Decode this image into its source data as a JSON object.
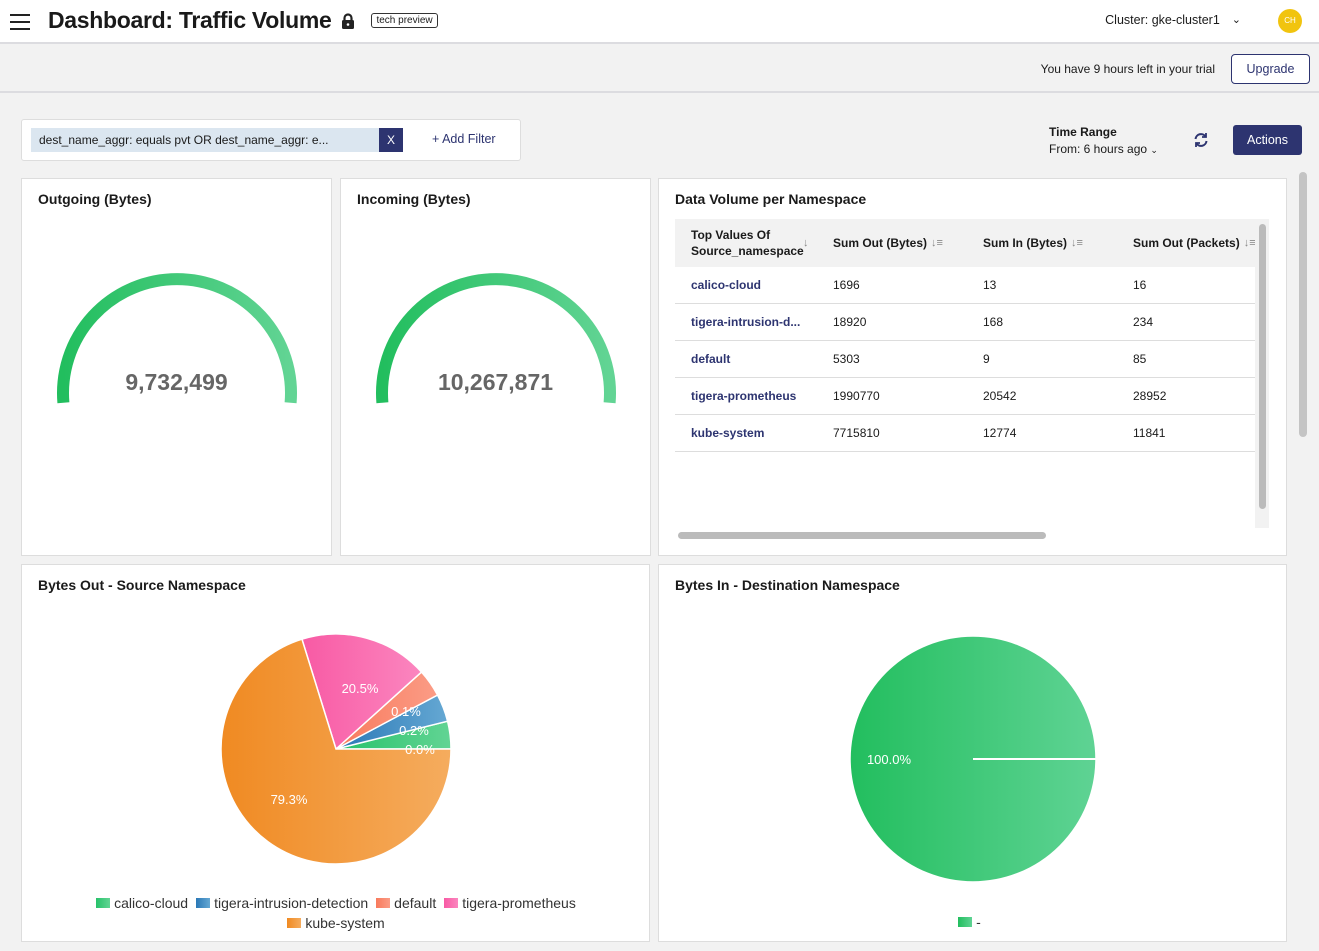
{
  "header": {
    "title": "Dashboard: Traffic Volume",
    "badge": "tech preview",
    "cluster": "Cluster: gke-cluster1",
    "avatar": "CH"
  },
  "trial": {
    "text": "You have 9 hours left in your trial",
    "upgrade": "Upgrade"
  },
  "filter": {
    "chip": "dest_name_aggr: equals pvt OR dest_name_aggr: e...",
    "remove": "X",
    "add": "+ Add Filter"
  },
  "time_range": {
    "label": "Time Range",
    "value": "From: 6 hours ago",
    "refresh_icon": "refresh-icon"
  },
  "actions_label": "Actions",
  "gauges": [
    {
      "title": "Outgoing (Bytes)",
      "value": "9,732,499"
    },
    {
      "title": "Incoming (Bytes)",
      "value": "10,267,871"
    }
  ],
  "table": {
    "title": "Data Volume per Namespace",
    "columns": [
      "Top Values Of Source_namespace",
      "Sum Out (Bytes)",
      "Sum In (Bytes)",
      "Sum Out (Packets)"
    ],
    "rows": [
      [
        "calico-cloud",
        "1696",
        "13",
        "16"
      ],
      [
        "tigera-intrusion-d...",
        "18920",
        "168",
        "234"
      ],
      [
        "default",
        "5303",
        "9",
        "85"
      ],
      [
        "tigera-prometheus",
        "1990770",
        "20542",
        "28952"
      ],
      [
        "kube-system",
        "7715810",
        "12774",
        "11841"
      ]
    ]
  },
  "chart_data": [
    {
      "type": "pie",
      "title": "Bytes Out - Source Namespace",
      "categories": [
        "calico-cloud",
        "tigera-intrusion-detection",
        "default",
        "tigera-prometheus",
        "kube-system"
      ],
      "values": [
        1696,
        18920,
        5303,
        1990770,
        7715810
      ],
      "labels": [
        "0.0%",
        "0.2%",
        "0.1%",
        "20.5%",
        "79.3%"
      ],
      "colors": [
        [
          "#27c26a",
          "#62d494"
        ],
        [
          "#2a78b6",
          "#65a8d3"
        ],
        [
          "#f87a5c",
          "#fb9c86"
        ],
        [
          "#f85aa4",
          "#fb86bf"
        ],
        [
          "#f08a22",
          "#f5ac5e"
        ]
      ],
      "legend": "bottom"
    },
    {
      "type": "pie",
      "title": "Bytes In - Destination Namespace",
      "categories": [
        "-"
      ],
      "values": [
        100
      ],
      "labels": [
        "100.0%"
      ],
      "colors": [
        [
          "#22be5e",
          "#5fd394"
        ]
      ],
      "legend": "bottom"
    }
  ]
}
